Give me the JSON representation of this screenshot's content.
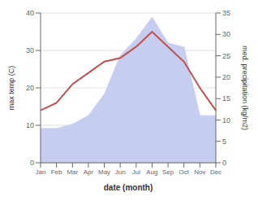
{
  "chart_data": {
    "type": "line",
    "xlabel": "date (month)",
    "ylabel": "max temp (C)",
    "y2label": "med. precipitation (kg/m2)",
    "categories": [
      "Jan",
      "Feb",
      "Mar",
      "Apr",
      "May",
      "Jun",
      "Jul",
      "Aug",
      "Sep",
      "Oct",
      "Nov",
      "Dec"
    ],
    "series": [
      {
        "type": "area",
        "axis": "y2",
        "color": "#c5cdf0",
        "values": [
          8,
          8,
          9,
          11,
          16,
          25,
          29,
          34,
          28,
          27,
          11,
          11
        ]
      },
      {
        "type": "line",
        "color": "#c0504d",
        "values": [
          14,
          16,
          21,
          24,
          27,
          28,
          31,
          35,
          31,
          27,
          20,
          14
        ]
      }
    ],
    "ylim": [
      0,
      40
    ],
    "yticks": [
      0,
      10,
      20,
      30,
      40
    ],
    "y2lim": [
      0,
      35
    ],
    "y2ticks": [
      0,
      5,
      10,
      15,
      20,
      25,
      30,
      35
    ],
    "grid": true
  }
}
